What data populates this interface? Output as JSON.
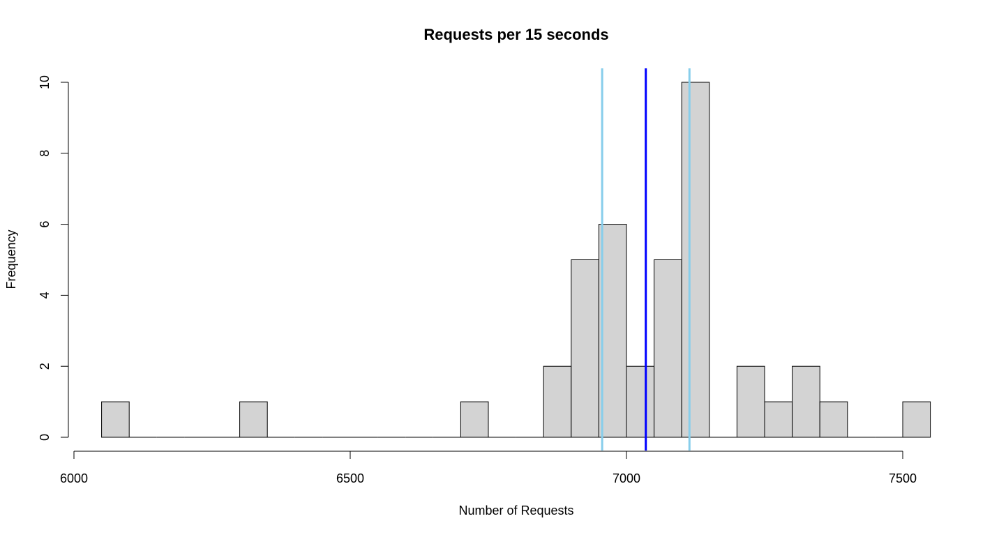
{
  "chart_data": {
    "type": "bar",
    "subtype": "histogram",
    "title": "Requests per 15 seconds",
    "xlabel": "Number of Requests",
    "ylabel": "Frequency",
    "xlim": [
      6000,
      7550
    ],
    "ylim": [
      0,
      10
    ],
    "bin_width": 50,
    "x_ticks": [
      6000,
      6500,
      7000,
      7500
    ],
    "y_ticks": [
      0,
      2,
      4,
      6,
      8,
      10
    ],
    "bins": [
      {
        "start": 6050,
        "end": 6100,
        "count": 1
      },
      {
        "start": 6100,
        "end": 6150,
        "count": 0
      },
      {
        "start": 6150,
        "end": 6200,
        "count": 0
      },
      {
        "start": 6200,
        "end": 6250,
        "count": 0
      },
      {
        "start": 6250,
        "end": 6300,
        "count": 0
      },
      {
        "start": 6300,
        "end": 6350,
        "count": 1
      },
      {
        "start": 6350,
        "end": 6400,
        "count": 0
      },
      {
        "start": 6400,
        "end": 6450,
        "count": 0
      },
      {
        "start": 6450,
        "end": 6500,
        "count": 0
      },
      {
        "start": 6500,
        "end": 6550,
        "count": 0
      },
      {
        "start": 6550,
        "end": 6600,
        "count": 0
      },
      {
        "start": 6600,
        "end": 6650,
        "count": 0
      },
      {
        "start": 6650,
        "end": 6700,
        "count": 0
      },
      {
        "start": 6700,
        "end": 6750,
        "count": 1
      },
      {
        "start": 6750,
        "end": 6800,
        "count": 0
      },
      {
        "start": 6800,
        "end": 6850,
        "count": 0
      },
      {
        "start": 6850,
        "end": 6900,
        "count": 2
      },
      {
        "start": 6900,
        "end": 6950,
        "count": 5
      },
      {
        "start": 6950,
        "end": 7000,
        "count": 6
      },
      {
        "start": 7000,
        "end": 7050,
        "count": 2
      },
      {
        "start": 7050,
        "end": 7100,
        "count": 5
      },
      {
        "start": 7100,
        "end": 7150,
        "count": 10
      },
      {
        "start": 7150,
        "end": 7200,
        "count": 0
      },
      {
        "start": 7200,
        "end": 7250,
        "count": 2
      },
      {
        "start": 7250,
        "end": 7300,
        "count": 1
      },
      {
        "start": 7300,
        "end": 7350,
        "count": 2
      },
      {
        "start": 7350,
        "end": 7400,
        "count": 1
      },
      {
        "start": 7400,
        "end": 7450,
        "count": 0
      },
      {
        "start": 7450,
        "end": 7500,
        "count": 0
      },
      {
        "start": 7500,
        "end": 7550,
        "count": 1
      }
    ],
    "vertical_lines": [
      {
        "x": 6956,
        "color": "#87ceeb"
      },
      {
        "x": 7035,
        "color": "#0000ff"
      },
      {
        "x": 7114,
        "color": "#87ceeb"
      }
    ],
    "bar_fill": "#d3d3d3",
    "bar_stroke": "#000000",
    "grid": false,
    "legend": "none"
  }
}
